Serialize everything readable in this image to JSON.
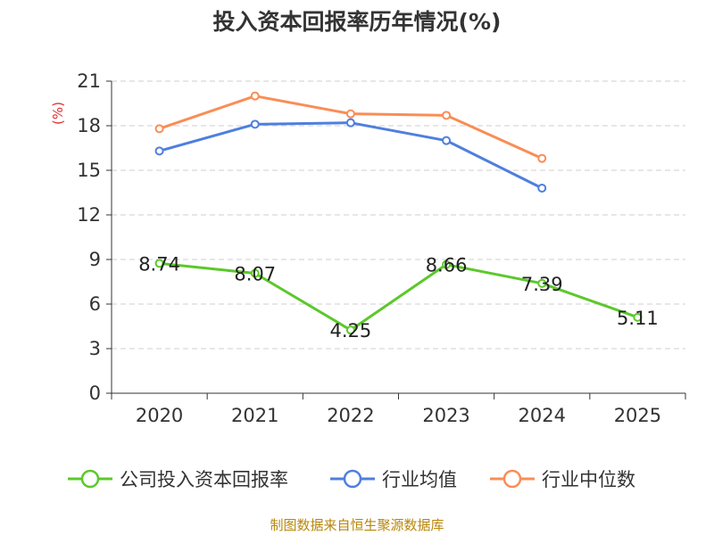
{
  "chart_data": {
    "type": "line",
    "title": "投入资本回报率历年情况(%)",
    "ylabel": "(%)",
    "xlabel": "",
    "categories": [
      "2020",
      "2021",
      "2022",
      "2023",
      "2024",
      "2025"
    ],
    "ylim": [
      0,
      21
    ],
    "yticks": [
      "0",
      "3",
      "6",
      "9",
      "12",
      "15",
      "18",
      "21"
    ],
    "grid": true,
    "legend_position": "bottom",
    "series": [
      {
        "name": "公司投入资本回报率",
        "color": "#5cc82b",
        "values": [
          8.74,
          8.07,
          4.25,
          8.66,
          7.39,
          5.11
        ],
        "labels": [
          "8.74",
          "8.07",
          "4.25",
          "8.66",
          "7.39",
          "5.11"
        ]
      },
      {
        "name": "行业均值",
        "color": "#4f7fde",
        "values": [
          16.3,
          18.1,
          18.2,
          17.0,
          13.8,
          null
        ]
      },
      {
        "name": "行业中位数",
        "color": "#f98d55",
        "values": [
          17.8,
          20.0,
          18.8,
          18.7,
          15.8,
          null
        ]
      }
    ]
  },
  "source": "制图数据来自恒生聚源数据库"
}
